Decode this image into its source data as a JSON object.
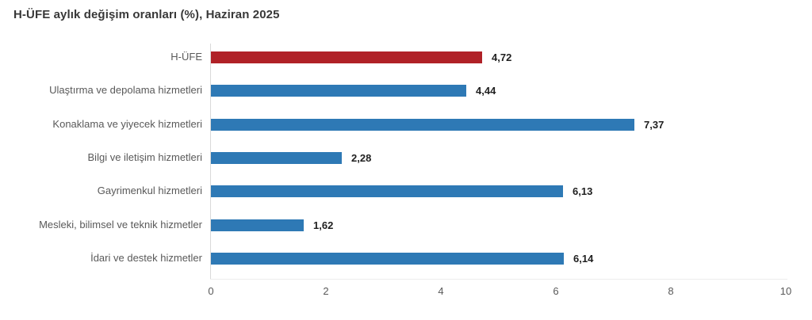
{
  "title": "H-ÜFE aylık değişim oranları (%), Haziran 2025",
  "chart_data": {
    "type": "bar",
    "orientation": "horizontal",
    "title": "H-ÜFE aylık değişim oranları (%), Haziran 2025",
    "categories": [
      "H-ÜFE",
      "Ulaştırma ve depolama hizmetleri",
      "Konaklama ve yiyecek hizmetleri",
      "Bilgi ve iletişim hizmetleri",
      "Gayrimenkul hizmetleri",
      "Mesleki, bilimsel ve teknik hizmetler",
      "İdari ve destek hizmetler"
    ],
    "values": [
      4.72,
      4.44,
      7.37,
      2.28,
      6.13,
      1.62,
      6.14
    ],
    "value_labels": [
      "4,72",
      "4,44",
      "7,37",
      "2,28",
      "6,13",
      "1,62",
      "6,14"
    ],
    "bar_colors": [
      "#b02127",
      "#2e79b5",
      "#2e79b5",
      "#2e79b5",
      "#2e79b5",
      "#2e79b5",
      "#2e79b5"
    ],
    "xlabel": "",
    "ylabel": "",
    "xlim": [
      0,
      10
    ],
    "x_ticks": [
      "0",
      "2",
      "4",
      "6",
      "8",
      "10"
    ],
    "grid": false,
    "legend": "none"
  },
  "colors": {
    "highlight_bar": "#b02127",
    "default_bar": "#2e79b5",
    "title_text": "#383838",
    "category_label": "#595959",
    "value_label": "#1f1f1f",
    "axis_line": "#d9d9d9"
  }
}
